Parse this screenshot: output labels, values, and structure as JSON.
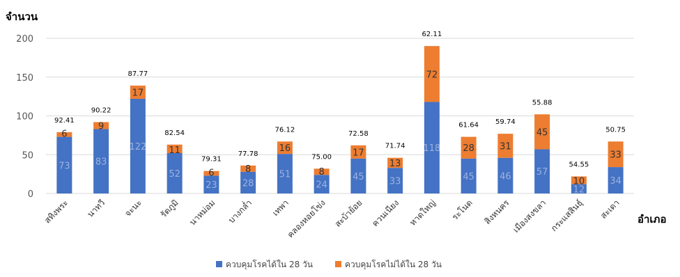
{
  "chart_data": {
    "type": "bar",
    "stacked": true,
    "title": "",
    "ylabel": "จำนวน",
    "xlabel": "อำเภอ",
    "ylim": [
      0,
      200
    ],
    "yticks": [
      0,
      50,
      100,
      150,
      200
    ],
    "grid": true,
    "legend_position": "bottom",
    "categories": [
      "สทิงพระ",
      "นาทวี",
      "จะนะ",
      "รัตภูมิ",
      "นาหม่อม",
      "บางกล่ำ",
      "เทพา",
      "คลองหอยโข่ง",
      "สะบ้าย้อย",
      "ควนเนียง",
      "หาดใหญ่",
      "ระโนด",
      "สิงหนคร",
      "เมืองสงขลา",
      "กระแสสินธุ์",
      "สะเดา"
    ],
    "series": [
      {
        "name": "ควบคุมโรคได้ใน 28 วัน",
        "color": "#4472C4",
        "values": [
          73,
          83,
          122,
          52,
          23,
          28,
          51,
          24,
          45,
          33,
          118,
          45,
          46,
          57,
          12,
          34
        ]
      },
      {
        "name": "ควบคุมโรคไม่ได้ใน 28 วัน",
        "color": "#ED7D31",
        "values": [
          6,
          9,
          17,
          11,
          6,
          8,
          16,
          8,
          17,
          13,
          72,
          28,
          31,
          45,
          10,
          33
        ]
      }
    ],
    "top_labels": [
      "92.41",
      "90.22",
      "87.77",
      "82.54",
      "79.31",
      "77.78",
      "76.12",
      "75.00",
      "72.58",
      "71.74",
      "62.11",
      "61.64",
      "59.74",
      "55.88",
      "54.55",
      "50.75"
    ]
  }
}
